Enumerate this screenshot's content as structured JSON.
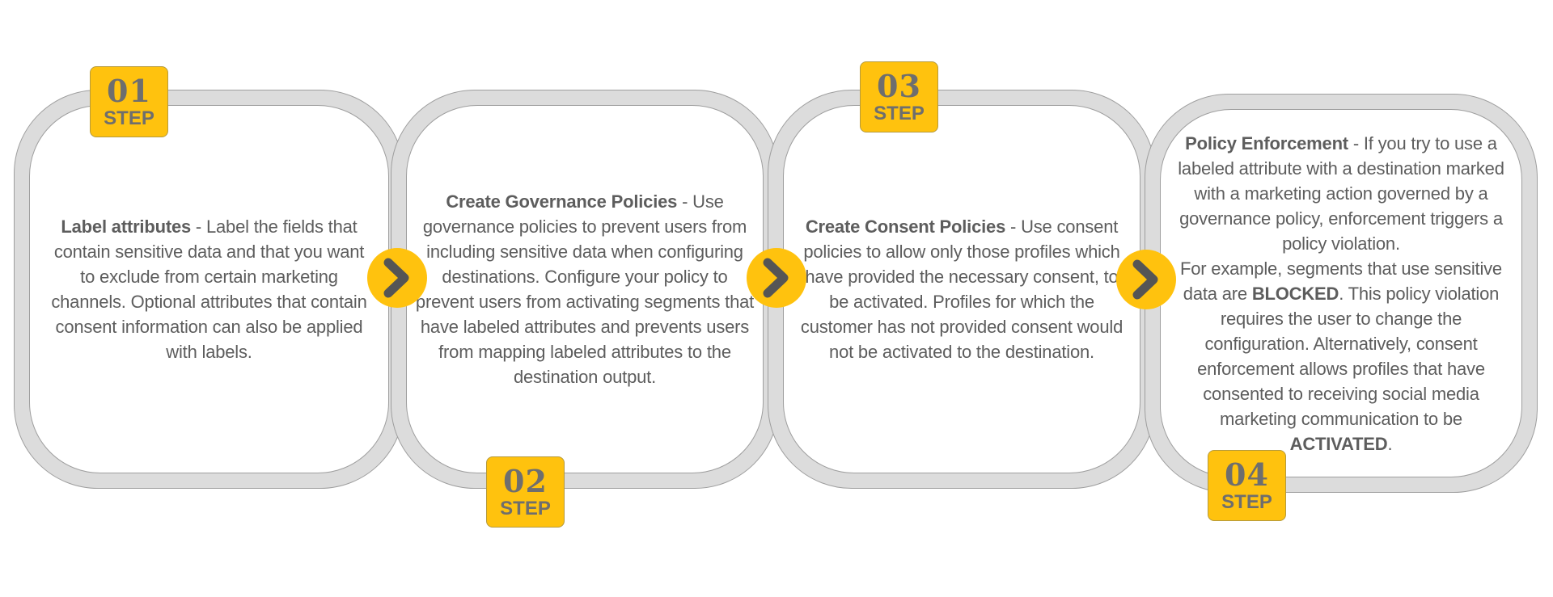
{
  "steps": [
    {
      "number": "01",
      "label": "STEP",
      "title": "Label attributes",
      "segments": [
        {
          "text": "Label the fields that contain sensitive data and that you want to exclude from certain marketing channels. Optional attributes that contain consent information can also be applied with labels.",
          "bold": false
        }
      ]
    },
    {
      "number": "02",
      "label": "STEP",
      "title": "Create Governance Policies",
      "segments": [
        {
          "text": "Use governance policies to prevent users from including sensitive data when configuring destinations. Configure your policy to prevent users from activating segments that have labeled attributes and prevents users from mapping labeled attributes to the destination output.",
          "bold": false
        }
      ]
    },
    {
      "number": "03",
      "label": "STEP",
      "title": "Create Consent Policies",
      "segments": [
        {
          "text": "Use consent policies to allow only those profiles which have provided the necessary consent, to be activated. Profiles for which the customer has not provided consent would not be activated to the destination.",
          "bold": false
        }
      ]
    },
    {
      "number": "04",
      "label": "STEP",
      "title": "Policy Enforcement",
      "segments": [
        {
          "text": "If you try to use a labeled attribute with a destination marked with a marketing action governed by a governance policy, enforcement triggers a policy violation.",
          "bold": false
        },
        {
          "text": "\n",
          "bold": false
        },
        {
          "text": "For example, segments that use sensitive data are ",
          "bold": false
        },
        {
          "text": "BLOCKED",
          "bold": true
        },
        {
          "text": ". This policy violation requires the user to change the configuration. Alternatively, consent enforcement allows profiles that have consented to receiving social media marketing communication to be ",
          "bold": false
        },
        {
          "text": "ACTIVATED",
          "bold": true
        },
        {
          "text": ".",
          "bold": false
        }
      ]
    }
  ],
  "separator": " - ",
  "arrow_icon": "chevron-right-icon",
  "colors": {
    "accent": "#ffc20e",
    "ring": "#dcdcdc",
    "text": "#5d5d5d",
    "badge_text": "#6e6e6e",
    "chevron": "#555555"
  }
}
